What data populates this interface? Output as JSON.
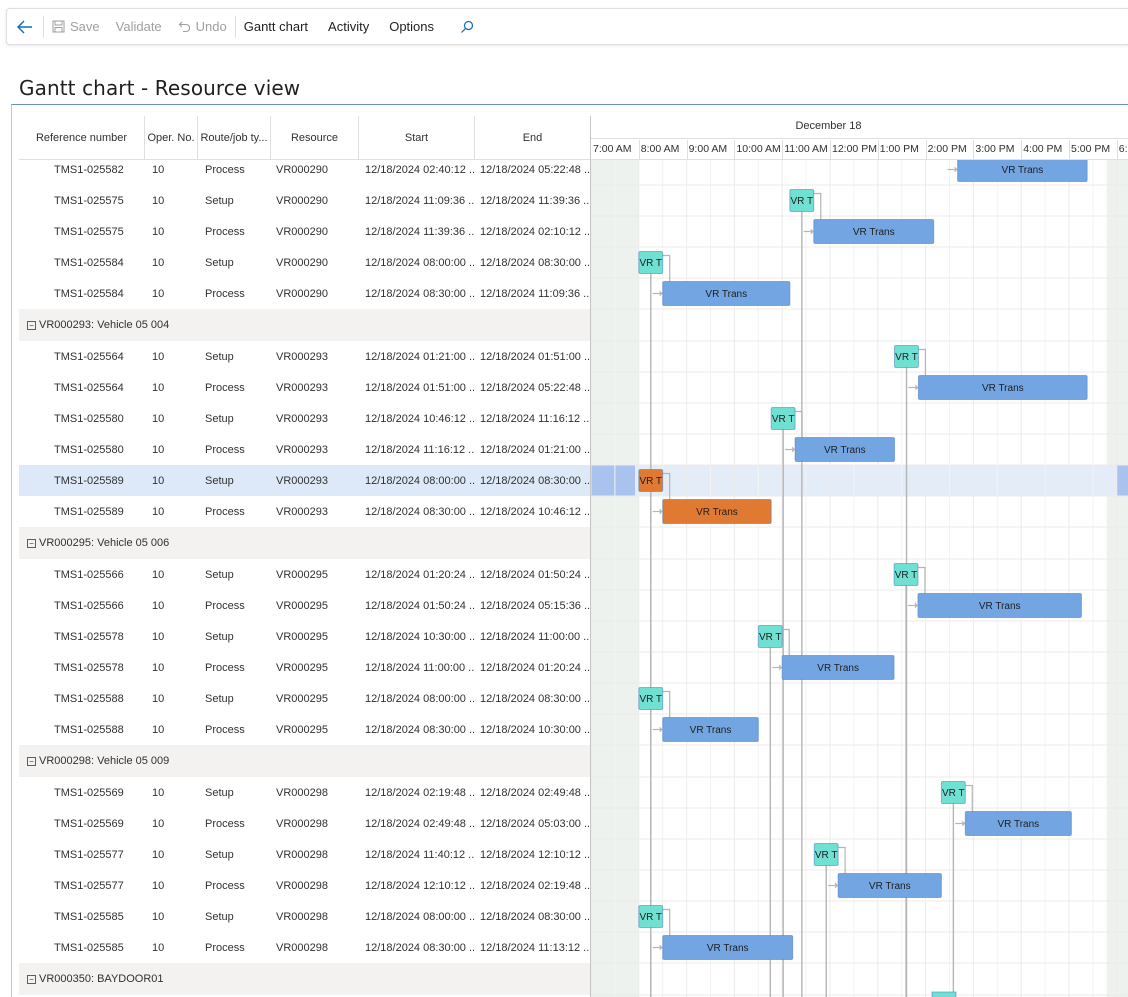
{
  "toolbar": {
    "save": "Save",
    "validate": "Validate",
    "undo": "Undo",
    "gantt": "Gantt chart",
    "activity": "Activity",
    "options": "Options"
  },
  "page": {
    "title": "Gantt chart - Resource view"
  },
  "grid": {
    "columns": [
      "Reference number",
      "Oper. No.",
      "Route/job ty...",
      "Resource",
      "Start",
      "End"
    ]
  },
  "rows": [
    {
      "kind": "job",
      "ref": "TMS1-025582",
      "oper": "10",
      "type": "Process",
      "res": "VR000290",
      "start": "12/18/2024 02:40:12 ...",
      "end": "12/18/2024 05:22:48 ..."
    },
    {
      "kind": "job",
      "ref": "TMS1-025575",
      "oper": "10",
      "type": "Setup",
      "res": "VR000290",
      "start": "12/18/2024 11:09:36 ...",
      "end": "12/18/2024 11:39:36 ..."
    },
    {
      "kind": "job",
      "ref": "TMS1-025575",
      "oper": "10",
      "type": "Process",
      "res": "VR000290",
      "start": "12/18/2024 11:39:36 ...",
      "end": "12/18/2024 02:10:12 ..."
    },
    {
      "kind": "job",
      "ref": "TMS1-025584",
      "oper": "10",
      "type": "Setup",
      "res": "VR000290",
      "start": "12/18/2024 08:00:00 ...",
      "end": "12/18/2024 08:30:00 ..."
    },
    {
      "kind": "job",
      "ref": "TMS1-025584",
      "oper": "10",
      "type": "Process",
      "res": "VR000290",
      "start": "12/18/2024 08:30:00 ...",
      "end": "12/18/2024 11:09:36 ..."
    },
    {
      "kind": "group",
      "label": "VR000293: Vehicle 05 004"
    },
    {
      "kind": "job",
      "ref": "TMS1-025564",
      "oper": "10",
      "type": "Setup",
      "res": "VR000293",
      "start": "12/18/2024 01:21:00 ...",
      "end": "12/18/2024 01:51:00 ..."
    },
    {
      "kind": "job",
      "ref": "TMS1-025564",
      "oper": "10",
      "type": "Process",
      "res": "VR000293",
      "start": "12/18/2024 01:51:00 ...",
      "end": "12/18/2024 05:22:48 ..."
    },
    {
      "kind": "job",
      "ref": "TMS1-025580",
      "oper": "10",
      "type": "Setup",
      "res": "VR000293",
      "start": "12/18/2024 10:46:12 ...",
      "end": "12/18/2024 11:16:12 ..."
    },
    {
      "kind": "job",
      "ref": "TMS1-025580",
      "oper": "10",
      "type": "Process",
      "res": "VR000293",
      "start": "12/18/2024 11:16:12 ...",
      "end": "12/18/2024 01:21:00 ..."
    },
    {
      "kind": "job",
      "ref": "TMS1-025589",
      "oper": "10",
      "type": "Setup",
      "res": "VR000293",
      "start": "12/18/2024 08:00:00 ...",
      "end": "12/18/2024 08:30:00 ...",
      "selected": true
    },
    {
      "kind": "job",
      "ref": "TMS1-025589",
      "oper": "10",
      "type": "Process",
      "res": "VR000293",
      "start": "12/18/2024 08:30:00 ...",
      "end": "12/18/2024 10:46:12 ..."
    },
    {
      "kind": "group",
      "label": "VR000295: Vehicle 05 006"
    },
    {
      "kind": "job",
      "ref": "TMS1-025566",
      "oper": "10",
      "type": "Setup",
      "res": "VR000295",
      "start": "12/18/2024 01:20:24 ...",
      "end": "12/18/2024 01:50:24 ..."
    },
    {
      "kind": "job",
      "ref": "TMS1-025566",
      "oper": "10",
      "type": "Process",
      "res": "VR000295",
      "start": "12/18/2024 01:50:24 ...",
      "end": "12/18/2024 05:15:36 ..."
    },
    {
      "kind": "job",
      "ref": "TMS1-025578",
      "oper": "10",
      "type": "Setup",
      "res": "VR000295",
      "start": "12/18/2024 10:30:00 ...",
      "end": "12/18/2024 11:00:00 ..."
    },
    {
      "kind": "job",
      "ref": "TMS1-025578",
      "oper": "10",
      "type": "Process",
      "res": "VR000295",
      "start": "12/18/2024 11:00:00 ...",
      "end": "12/18/2024 01:20:24 ..."
    },
    {
      "kind": "job",
      "ref": "TMS1-025588",
      "oper": "10",
      "type": "Setup",
      "res": "VR000295",
      "start": "12/18/2024 08:00:00 ...",
      "end": "12/18/2024 08:30:00 ..."
    },
    {
      "kind": "job",
      "ref": "TMS1-025588",
      "oper": "10",
      "type": "Process",
      "res": "VR000295",
      "start": "12/18/2024 08:30:00 ...",
      "end": "12/18/2024 10:30:00 ..."
    },
    {
      "kind": "group",
      "label": "VR000298: Vehicle 05 009"
    },
    {
      "kind": "job",
      "ref": "TMS1-025569",
      "oper": "10",
      "type": "Setup",
      "res": "VR000298",
      "start": "12/18/2024 02:19:48 ...",
      "end": "12/18/2024 02:49:48 ..."
    },
    {
      "kind": "job",
      "ref": "TMS1-025569",
      "oper": "10",
      "type": "Process",
      "res": "VR000298",
      "start": "12/18/2024 02:49:48 ...",
      "end": "12/18/2024 05:03:00 ..."
    },
    {
      "kind": "job",
      "ref": "TMS1-025577",
      "oper": "10",
      "type": "Setup",
      "res": "VR000298",
      "start": "12/18/2024 11:40:12 ...",
      "end": "12/18/2024 12:10:12 ..."
    },
    {
      "kind": "job",
      "ref": "TMS1-025577",
      "oper": "10",
      "type": "Process",
      "res": "VR000298",
      "start": "12/18/2024 12:10:12 ...",
      "end": "12/18/2024 02:19:48 ..."
    },
    {
      "kind": "job",
      "ref": "TMS1-025585",
      "oper": "10",
      "type": "Setup",
      "res": "VR000298",
      "start": "12/18/2024 08:00:00 ...",
      "end": "12/18/2024 08:30:00 ..."
    },
    {
      "kind": "job",
      "ref": "TMS1-025585",
      "oper": "10",
      "type": "Process",
      "res": "VR000298",
      "start": "12/18/2024 08:30:00 ...",
      "end": "12/18/2024 11:13:12 ..."
    },
    {
      "kind": "group",
      "label": "VR000350: BAYDOOR01"
    }
  ],
  "gantt": {
    "date_label": "December 18",
    "hours": [
      "7:00 AM",
      "8:00 AM",
      "9:00 AM",
      "10:00 AM",
      "11:00 AM",
      "12:00 PM",
      "1:00 PM",
      "2:00 PM",
      "3:00 PM",
      "4:00 PM",
      "5:00 PM",
      "6:"
    ],
    "setup_label": "VR T",
    "process_label": "VR Trans",
    "colors": {
      "setup": "#6fe0d2",
      "process": "#72a5e2",
      "selected": "#e07a32",
      "grid": "#ebebeb",
      "link": "#b5b5b5"
    }
  }
}
